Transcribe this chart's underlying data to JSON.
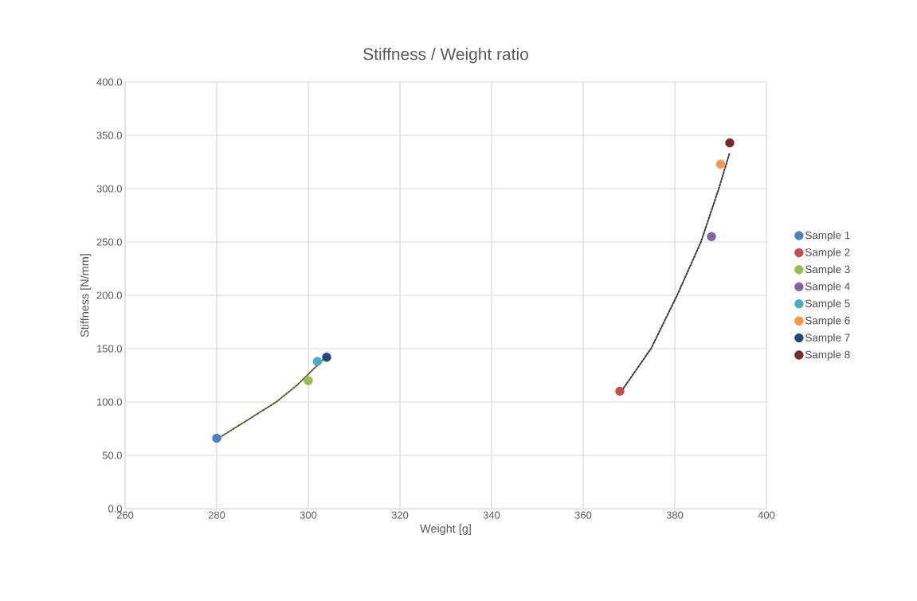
{
  "chart_data": {
    "type": "scatter",
    "title": "Stiffness / Weight ratio",
    "xlabel": "Weight [g]",
    "ylabel": "Stiffness [N/mm]",
    "xlim": [
      260,
      400
    ],
    "xticks": [
      260,
      280,
      300,
      320,
      340,
      360,
      380,
      400
    ],
    "ylim": [
      0,
      400
    ],
    "yticks": [
      {
        "value": 0,
        "label": "0.0"
      },
      {
        "value": 50,
        "label": "50.0"
      },
      {
        "value": 100,
        "label": "100.0"
      },
      {
        "value": 150,
        "label": "150.0"
      },
      {
        "value": 200,
        "label": "200.0"
      },
      {
        "value": 250,
        "label": "250.0"
      },
      {
        "value": 300,
        "label": "300.0"
      },
      {
        "value": 350,
        "label": "350.0"
      },
      {
        "value": 400,
        "label": "400.0"
      }
    ],
    "grid": true,
    "legend": "right",
    "marker": "circle",
    "series": [
      {
        "name": "Sample 1",
        "color": "#4f81bd",
        "x": [
          280
        ],
        "values": [
          66
        ]
      },
      {
        "name": "Sample 2",
        "color": "#c0504d",
        "x": [
          368
        ],
        "values": [
          110
        ]
      },
      {
        "name": "Sample 3",
        "color": "#9bbb59",
        "x": [
          300
        ],
        "values": [
          120
        ]
      },
      {
        "name": "Sample 4",
        "color": "#8064a2",
        "x": [
          388
        ],
        "values": [
          255
        ]
      },
      {
        "name": "Sample 5",
        "color": "#4bacc6",
        "x": [
          302
        ],
        "values": [
          138
        ]
      },
      {
        "name": "Sample 6",
        "color": "#f79646",
        "x": [
          390
        ],
        "values": [
          323
        ]
      },
      {
        "name": "Sample 7",
        "color": "#1f497d",
        "x": [
          304
        ],
        "values": [
          142
        ]
      },
      {
        "name": "Sample 8",
        "color": "#772c2a",
        "x": [
          392
        ],
        "values": [
          343
        ]
      },
      {
        "type": "line",
        "line_style": "dotted",
        "marker": "none",
        "color": "#4f6228",
        "x": [
          280,
          293,
          297.6,
          304
        ],
        "values": [
          65,
          100,
          116,
          143
        ]
      },
      {
        "type": "line",
        "line_style": "dotted",
        "marker": "none",
        "color": "#3f3151",
        "x": [
          368,
          374.8,
          380.5,
          385.7,
          389.6,
          392
        ],
        "values": [
          108,
          150,
          200,
          250,
          300,
          334
        ]
      }
    ]
  }
}
